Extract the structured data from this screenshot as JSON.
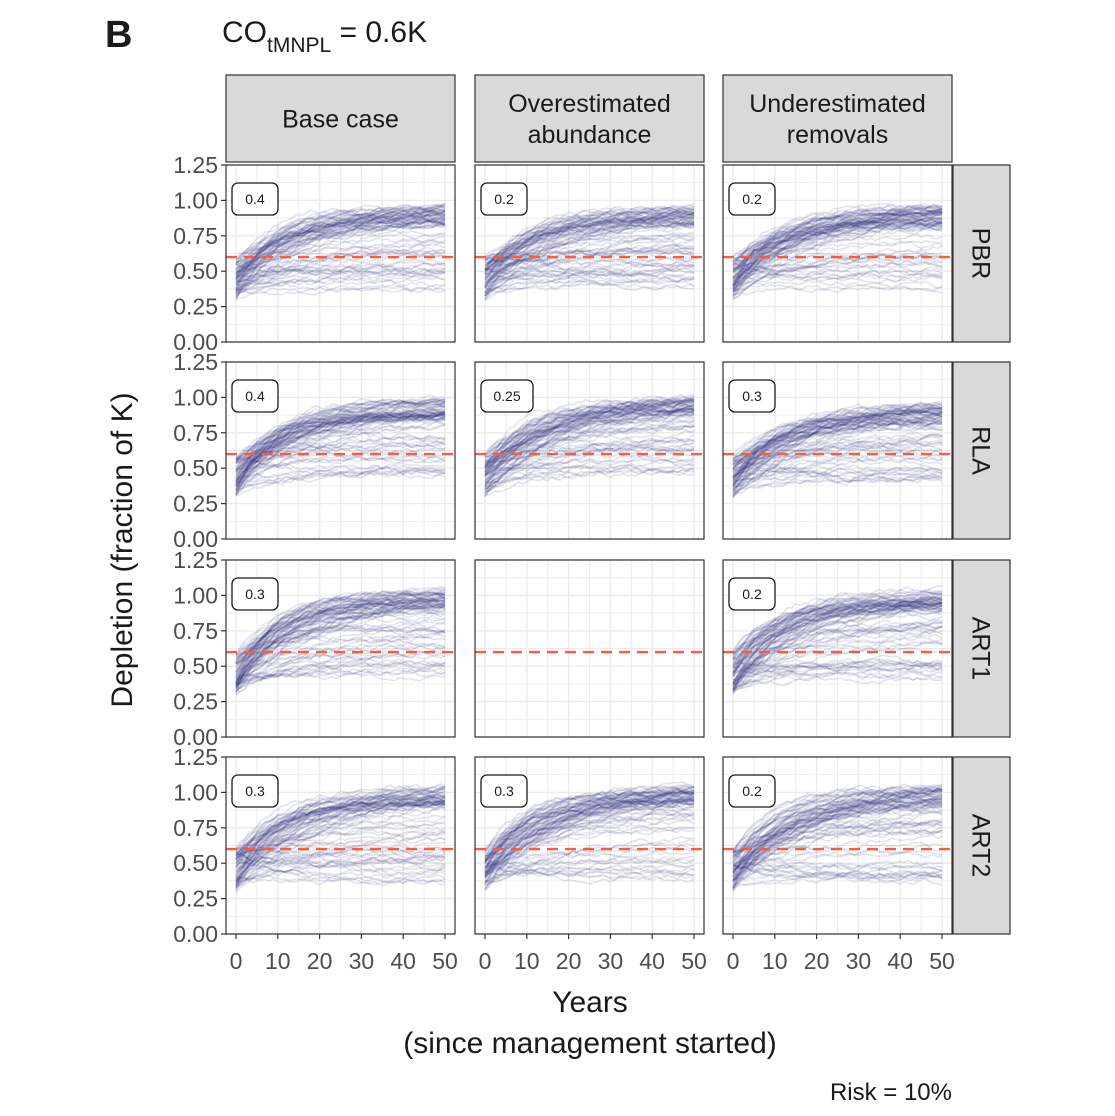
{
  "panel_letter": "B",
  "title": {
    "prefix": "CO",
    "subscript": "tMNPL",
    "suffix": " = 0.6K"
  },
  "footer": "Risk = 10%",
  "colors": {
    "trajectory": "#2b2f7a",
    "reference": "#ff5a3c",
    "strip_fill": "#d9d9d9",
    "grid": "#ebebeb",
    "border": "#333333"
  },
  "chart_data": {
    "type": "line",
    "description_of_series": "faceted trajectory plot; each panel shows many simulated depletion trajectories",
    "xlabel": "Years",
    "xlabel_line2": "(since management started)",
    "ylabel": "Depletion (fraction of K)",
    "xlim": [
      0,
      50
    ],
    "ylim": [
      0,
      1.25
    ],
    "x_ticks": [
      0,
      10,
      20,
      30,
      40,
      50
    ],
    "x_tick_labels": [
      "0",
      "10",
      "20",
      "30",
      "40",
      "50"
    ],
    "y_ticks": [
      0,
      0.25,
      0.5,
      0.75,
      1.0,
      1.25
    ],
    "y_tick_labels": [
      "0.00",
      "0.25",
      "0.50",
      "0.75",
      "1.00",
      "1.25"
    ],
    "reference_line": 0.6,
    "columns": [
      "Base case",
      "Overestimated\nabundance",
      "Underestimated\nremovals"
    ],
    "rows": [
      "PBR",
      "RLA",
      "ART1",
      "ART2"
    ],
    "risk_labels": [
      [
        "0.4",
        "0.2",
        "0.2"
      ],
      [
        "0.4",
        "0.25",
        "0.3"
      ],
      [
        "0.3",
        null,
        "0.2"
      ],
      [
        "0.3",
        "0.3",
        "0.2"
      ]
    ],
    "has_trajectories": [
      [
        true,
        true,
        true
      ],
      [
        true,
        true,
        true
      ],
      [
        true,
        false,
        true
      ],
      [
        true,
        true,
        true
      ]
    ],
    "trajectory_summary": [
      [
        {
          "start_min": 0.3,
          "start_max": 0.6,
          "end_median": 0.9,
          "end_min": 0.35
        },
        {
          "start_min": 0.3,
          "start_max": 0.6,
          "end_median": 0.9,
          "end_min": 0.35
        },
        {
          "start_min": 0.3,
          "start_max": 0.6,
          "end_median": 0.9,
          "end_min": 0.35
        }
      ],
      [
        {
          "start_min": 0.3,
          "start_max": 0.6,
          "end_median": 0.93,
          "end_min": 0.45
        },
        {
          "start_min": 0.3,
          "start_max": 0.6,
          "end_median": 0.95,
          "end_min": 0.45
        },
        {
          "start_min": 0.3,
          "start_max": 0.6,
          "end_median": 0.9,
          "end_min": 0.4
        }
      ],
      [
        {
          "start_min": 0.3,
          "start_max": 0.6,
          "end_median": 0.98,
          "end_min": 0.4
        },
        null,
        {
          "start_min": 0.3,
          "start_max": 0.6,
          "end_median": 0.98,
          "end_min": 0.4
        }
      ],
      [
        {
          "start_min": 0.3,
          "start_max": 0.6,
          "end_median": 0.98,
          "end_min": 0.35
        },
        {
          "start_min": 0.3,
          "start_max": 0.6,
          "end_median": 0.98,
          "end_min": 0.35
        },
        {
          "start_min": 0.3,
          "start_max": 0.6,
          "end_median": 0.98,
          "end_min": 0.35
        }
      ]
    ]
  }
}
